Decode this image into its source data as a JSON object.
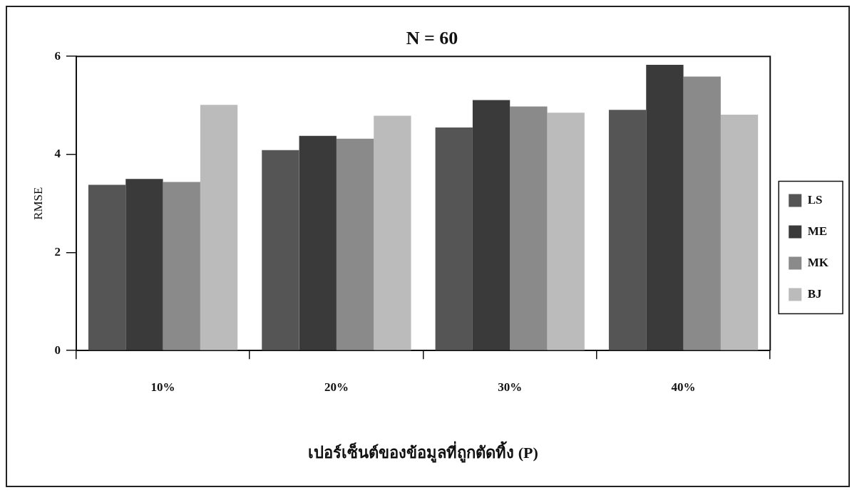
{
  "chart_data": {
    "type": "bar",
    "title": "N = 60",
    "xlabel": "เปอร์เซ็นต์ของข้อมูลที่ถูกตัดทิ้ง (P)",
    "ylabel": "RMSE",
    "categories": [
      "10%",
      "20%",
      "30%",
      "40%"
    ],
    "series": [
      {
        "name": "LS",
        "color": "#555555",
        "values": [
          3.38,
          4.09,
          4.55,
          4.91
        ]
      },
      {
        "name": "ME",
        "color": "#3a3a3a",
        "values": [
          3.5,
          4.38,
          5.11,
          5.83
        ]
      },
      {
        "name": "MK",
        "color": "#8a8a8a",
        "values": [
          3.44,
          4.32,
          4.98,
          5.59
        ]
      },
      {
        "name": "BJ",
        "color": "#bbbbbb",
        "values": [
          5.01,
          4.79,
          4.85,
          4.81
        ]
      }
    ],
    "ylim": [
      0,
      6
    ],
    "yticks": [
      0,
      2,
      4,
      6
    ],
    "grid": false,
    "legend": "right"
  }
}
